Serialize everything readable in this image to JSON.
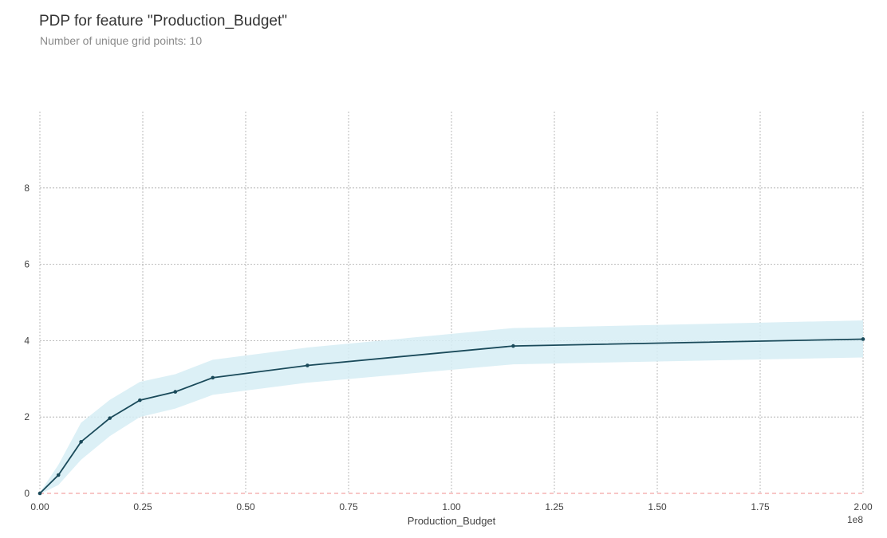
{
  "title": "PDP for feature \"Production_Budget\"",
  "subtitle": "Number of unique grid points: 10",
  "colors": {
    "line": "#1a4a5a",
    "band": "#d6edf5",
    "grid": "#a9a9a9",
    "zero_line": "#f08080"
  },
  "chart_data": {
    "type": "line",
    "xlabel": "Production_Budget",
    "ylabel": "",
    "x_offset_label": "1e8",
    "xlim": [
      0,
      200000000
    ],
    "ylim": [
      0,
      10
    ],
    "x_ticks": [
      0,
      25000000,
      50000000,
      75000000,
      100000000,
      125000000,
      150000000,
      175000000,
      200000000
    ],
    "x_tick_labels": [
      "0.00",
      "0.25",
      "0.50",
      "0.75",
      "1.00",
      "1.25",
      "1.50",
      "1.75",
      "2.00"
    ],
    "y_ticks": [
      0,
      2,
      4,
      6,
      8
    ],
    "y_tick_labels": [
      "0",
      "2",
      "4",
      "6",
      "8"
    ],
    "grid": true,
    "x": [
      0,
      4500000,
      10000000,
      17000000,
      24300000,
      32900000,
      42000000,
      65000000,
      115000000,
      200000000
    ],
    "y": [
      0,
      0.48,
      1.35,
      1.97,
      2.44,
      2.66,
      3.03,
      3.35,
      3.86,
      4.04
    ],
    "band_upper": [
      0.02,
      0.75,
      1.85,
      2.45,
      2.92,
      3.12,
      3.5,
      3.82,
      4.33,
      4.53
    ],
    "band_lower": [
      -0.02,
      0.22,
      0.88,
      1.5,
      2.0,
      2.22,
      2.58,
      2.9,
      3.38,
      3.56
    ],
    "zero_reference": 0
  }
}
